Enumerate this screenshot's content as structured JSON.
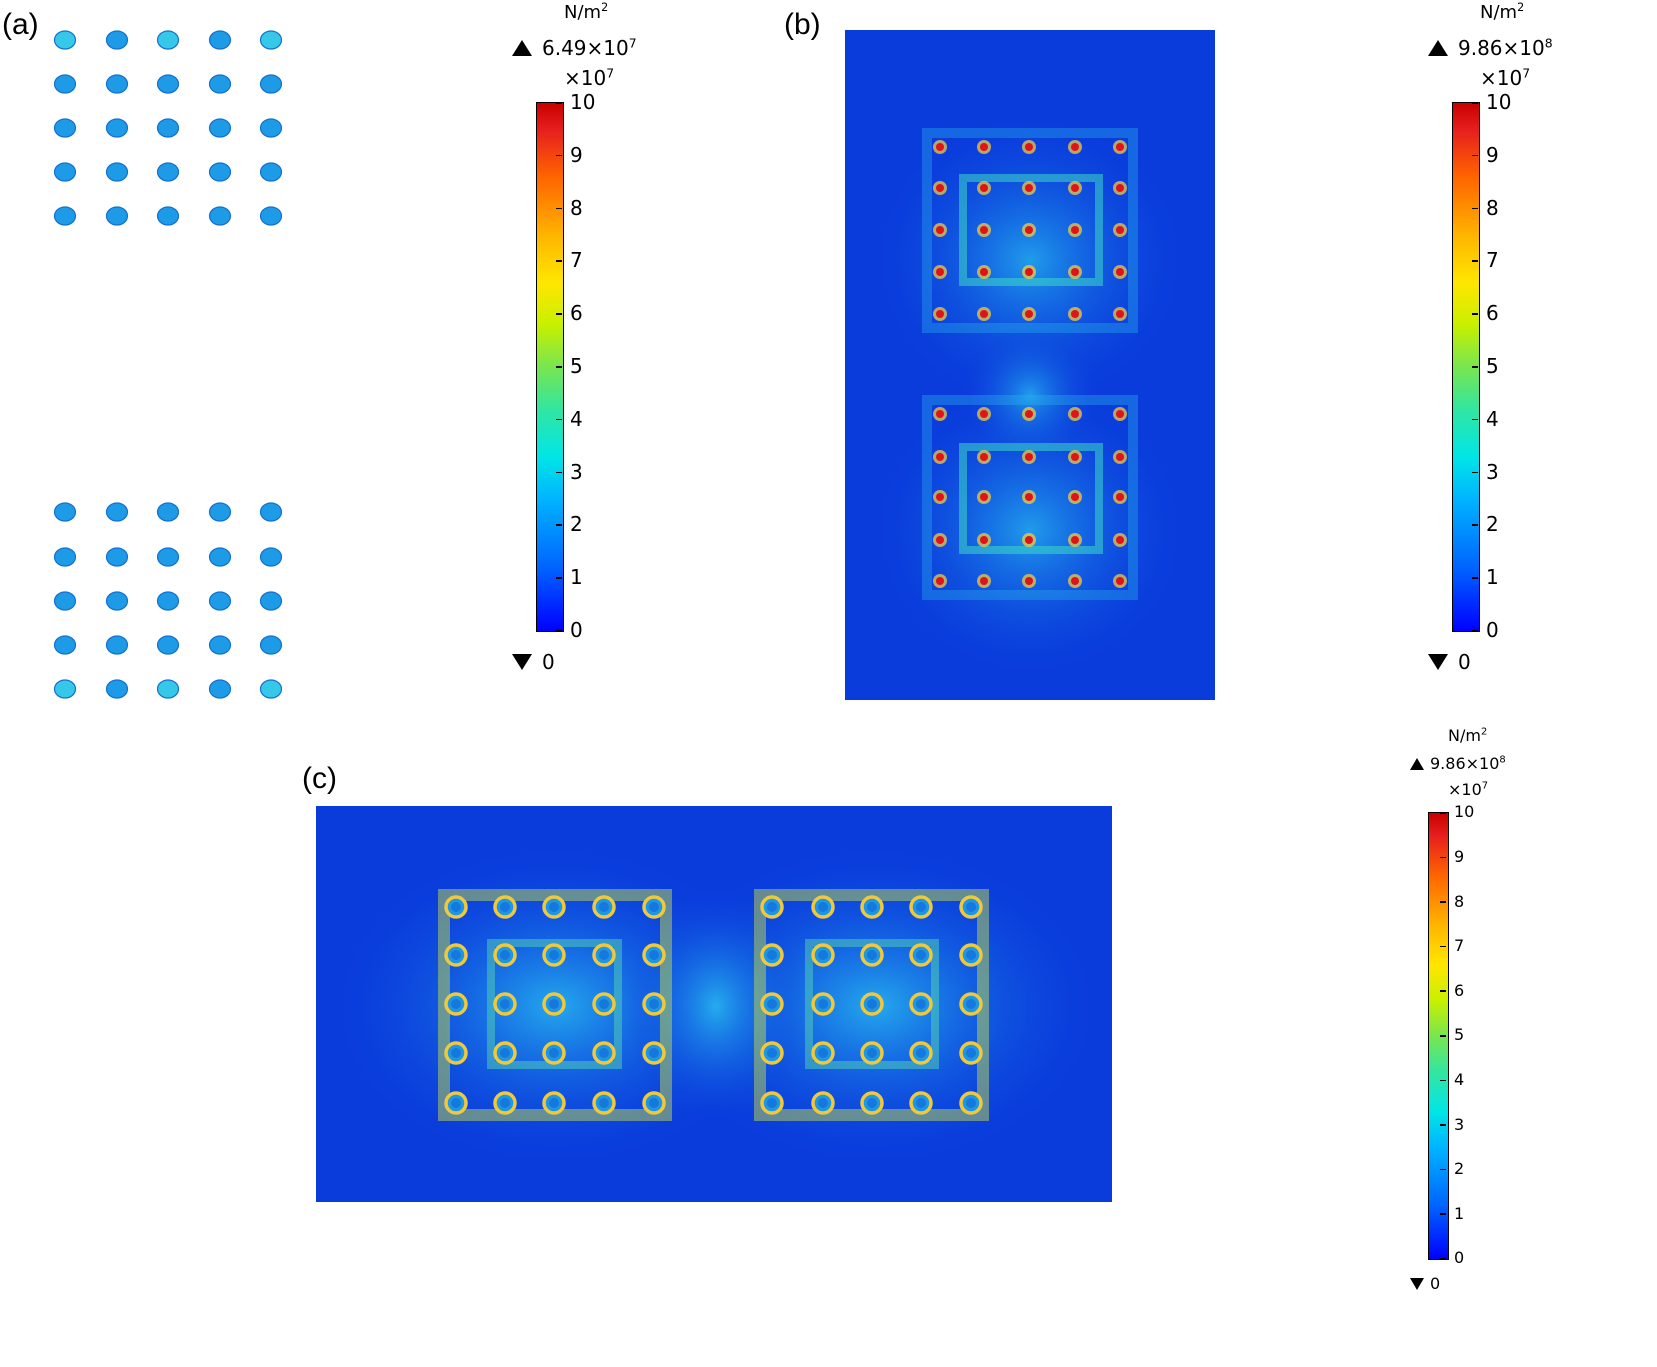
{
  "panels": [
    {
      "id": "a",
      "label": "(a)",
      "colorbar": {
        "unit_base": "N/m",
        "unit_exp": "2",
        "max_mantissa": "6.49×10",
        "max_exp": "7",
        "mult_base": "×10",
        "mult_exp": "7",
        "min": "0",
        "ticks": [
          "10",
          "9",
          "8",
          "7",
          "6",
          "5",
          "4",
          "3",
          "2",
          "1",
          "0"
        ]
      }
    },
    {
      "id": "b",
      "label": "(b)",
      "colorbar": {
        "unit_base": "N/m",
        "unit_exp": "2",
        "max_mantissa": "9.86×10",
        "max_exp": "8",
        "mult_base": "×10",
        "mult_exp": "7",
        "min": "0",
        "ticks": [
          "10",
          "9",
          "8",
          "7",
          "6",
          "5",
          "4",
          "3",
          "2",
          "1",
          "0"
        ]
      }
    },
    {
      "id": "c",
      "label": "(c)",
      "colorbar": {
        "unit_base": "N/m",
        "unit_exp": "2",
        "max_mantissa": "9.86×10",
        "max_exp": "8",
        "mult_base": "×10",
        "mult_exp": "7",
        "min": "0",
        "ticks": [
          "10",
          "9",
          "8",
          "7",
          "6",
          "5",
          "4",
          "3",
          "2",
          "1",
          "0"
        ]
      }
    }
  ],
  "colors": {
    "field_blue": "#0a3cdc",
    "dot_blue": "#1e9be6",
    "dot_cyan": "#36c8e8",
    "hot_red": "#e01414",
    "warm_yellow": "#e6dc3c"
  }
}
